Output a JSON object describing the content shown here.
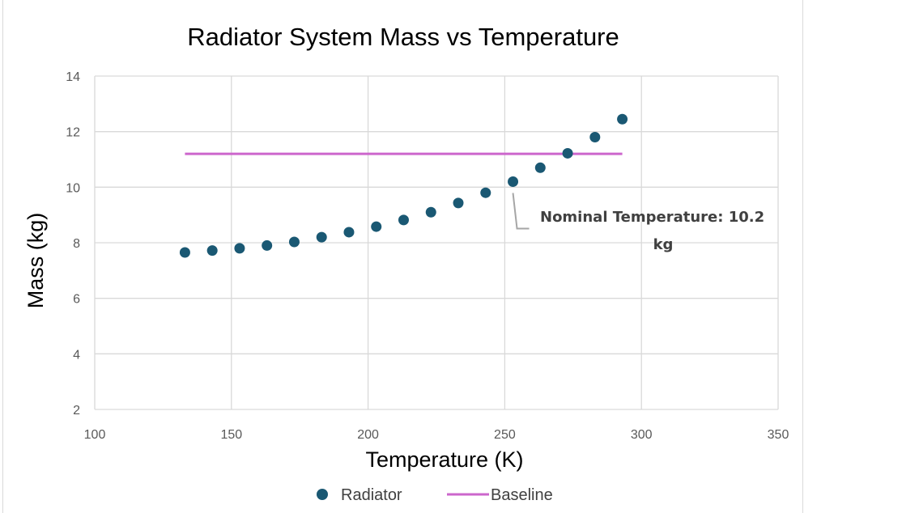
{
  "chart_data": {
    "type": "scatter",
    "title": "Radiator System Mass vs Temperature",
    "xlabel": "Temperature (K)",
    "ylabel": "Mass (kg)",
    "xlim": [
      100,
      350
    ],
    "ylim": [
      2,
      14
    ],
    "xticks": [
      100,
      150,
      200,
      250,
      300,
      350
    ],
    "yticks": [
      2,
      4,
      6,
      8,
      10,
      12,
      14
    ],
    "grid": true,
    "legend_position": "bottom",
    "series": [
      {
        "name": "Radiator",
        "kind": "markers",
        "color": "#1a5873",
        "x": [
          133,
          143,
          153,
          163,
          173,
          183,
          193,
          203,
          213,
          223,
          233,
          243,
          253,
          263,
          273,
          283,
          293
        ],
        "y": [
          7.65,
          7.72,
          7.8,
          7.9,
          8.03,
          8.2,
          8.38,
          8.58,
          8.82,
          9.1,
          9.43,
          9.8,
          10.2,
          10.7,
          11.22,
          11.8,
          12.45
        ]
      },
      {
        "name": "Baseline",
        "kind": "line",
        "color": "#cc66cc",
        "x": [
          133,
          293
        ],
        "y": [
          11.2,
          11.2
        ]
      }
    ],
    "annotations": [
      {
        "text_line1": "Nominal Temperature: 10.2",
        "text_line2": "kg",
        "point_x": 253,
        "point_y": 10.2
      }
    ]
  }
}
